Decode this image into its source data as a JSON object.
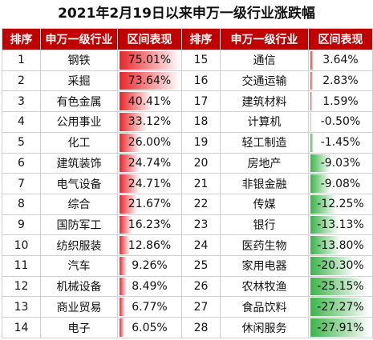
{
  "title": "2021年2月19日以来申万一级行业涨跌幅",
  "chart_data": {
    "type": "table",
    "headers": [
      "排序",
      "申万一级行业",
      "区间表现",
      "排序",
      "申万一级行业",
      "区间表现"
    ],
    "rows_left": [
      {
        "rank": "1",
        "industry": "钢铁",
        "value": 75.01,
        "label": "75.01%"
      },
      {
        "rank": "2",
        "industry": "采掘",
        "value": 73.64,
        "label": "73.64%"
      },
      {
        "rank": "3",
        "industry": "有色金属",
        "value": 40.41,
        "label": "40.41%"
      },
      {
        "rank": "4",
        "industry": "公用事业",
        "value": 33.12,
        "label": "33.12%"
      },
      {
        "rank": "5",
        "industry": "化工",
        "value": 26.0,
        "label": "26.00%"
      },
      {
        "rank": "6",
        "industry": "建筑装饰",
        "value": 24.74,
        "label": "24.74%"
      },
      {
        "rank": "7",
        "industry": "电气设备",
        "value": 24.71,
        "label": "24.71%"
      },
      {
        "rank": "8",
        "industry": "综合",
        "value": 21.67,
        "label": "21.67%"
      },
      {
        "rank": "9",
        "industry": "国防军工",
        "value": 16.23,
        "label": "16.23%"
      },
      {
        "rank": "10",
        "industry": "纺织服装",
        "value": 12.86,
        "label": "12.86%"
      },
      {
        "rank": "11",
        "industry": "汽车",
        "value": 9.26,
        "label": "9.26%"
      },
      {
        "rank": "12",
        "industry": "机械设备",
        "value": 8.49,
        "label": "8.49%"
      },
      {
        "rank": "13",
        "industry": "商业贸易",
        "value": 6.77,
        "label": "6.77%"
      },
      {
        "rank": "14",
        "industry": "电子",
        "value": 6.05,
        "label": "6.05%"
      }
    ],
    "rows_right": [
      {
        "rank": "15",
        "industry": "通信",
        "value": 3.64,
        "label": "3.64%"
      },
      {
        "rank": "16",
        "industry": "交通运输",
        "value": 2.83,
        "label": "2.83%"
      },
      {
        "rank": "17",
        "industry": "建筑材料",
        "value": 1.59,
        "label": "1.59%"
      },
      {
        "rank": "18",
        "industry": "计算机",
        "value": -0.5,
        "label": "-0.50%"
      },
      {
        "rank": "19",
        "industry": "轻工制造",
        "value": -1.45,
        "label": "-1.45%"
      },
      {
        "rank": "20",
        "industry": "房地产",
        "value": -9.03,
        "label": "-9.03%"
      },
      {
        "rank": "21",
        "industry": "非银金融",
        "value": -9.08,
        "label": "-9.08%"
      },
      {
        "rank": "22",
        "industry": "传媒",
        "value": -12.25,
        "label": "-12.25%"
      },
      {
        "rank": "23",
        "industry": "银行",
        "value": -13.13,
        "label": "-13.13%"
      },
      {
        "rank": "24",
        "industry": "医药生物",
        "value": -13.8,
        "label": "-13.80%"
      },
      {
        "rank": "25",
        "industry": "家用电器",
        "value": -20.3,
        "label": "-20.30%"
      },
      {
        "rank": "26",
        "industry": "农林牧渔",
        "value": -25.15,
        "label": "-25.15%"
      },
      {
        "rank": "27",
        "industry": "食品饮料",
        "value": -27.27,
        "label": "-27.27%"
      },
      {
        "rank": "28",
        "industry": "休闲服务",
        "value": -27.91,
        "label": "-27.91%"
      }
    ]
  },
  "colors": {
    "header_bg": "#c00000",
    "positive_bar": "#e8262b",
    "negative_bar": "#3cb44b"
  }
}
